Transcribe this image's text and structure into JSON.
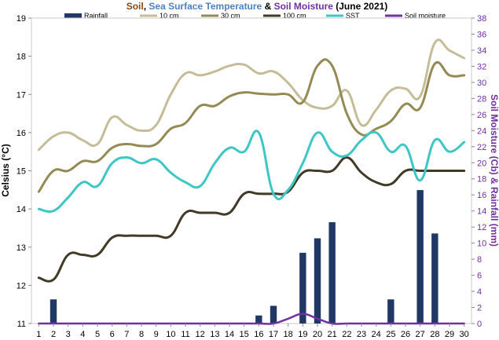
{
  "chart_data": {
    "type": "line",
    "title_parts": [
      {
        "text": "Soil",
        "color": "#8b4513"
      },
      {
        "text": ", ",
        "color": "#000000"
      },
      {
        "text": "Sea Surface Temperature",
        "color": "#4f81bd"
      },
      {
        "text": " & ",
        "color": "#000000"
      },
      {
        "text": "Soil Moisture",
        "color": "#7030a0"
      },
      {
        "text": " (June 2021)",
        "color": "#000000"
      }
    ],
    "ylabel": "Celsius (°C)",
    "y2label": "Soil Moisture (Cb) & Rainfall (mm)",
    "ylim": [
      11,
      19
    ],
    "y2lim": [
      0,
      38
    ],
    "yticks": [
      "11",
      "12",
      "13",
      "14",
      "15",
      "16",
      "17",
      "18",
      "19"
    ],
    "y2ticks": [
      "0",
      "2",
      "4",
      "6",
      "8",
      "10",
      "12",
      "14",
      "16",
      "18",
      "20",
      "22",
      "24",
      "26",
      "28",
      "30",
      "32",
      "34",
      "36",
      "38"
    ],
    "x": [
      1,
      2,
      3,
      4,
      5,
      6,
      7,
      8,
      9,
      10,
      11,
      12,
      13,
      14,
      15,
      16,
      17,
      18,
      19,
      20,
      21,
      22,
      23,
      24,
      25,
      26,
      27,
      28,
      29,
      30
    ],
    "legend": [
      {
        "name": "Rainfall",
        "color": "#1f3864",
        "kind": "bar"
      },
      {
        "name": "10 cm",
        "color": "#c4bd97",
        "kind": "line"
      },
      {
        "name": "30 cm",
        "color": "#948a54",
        "kind": "line"
      },
      {
        "name": "100 cm",
        "color": "#403a26",
        "kind": "line"
      },
      {
        "name": "SST",
        "color": "#3ec6c6",
        "kind": "line"
      },
      {
        "name": "Soil moisture",
        "color": "#7030a0",
        "kind": "line"
      }
    ],
    "series": [
      {
        "name": "10 cm",
        "axis": "left",
        "color": "#c4bd97",
        "values": [
          15.55,
          15.9,
          16.0,
          15.8,
          15.7,
          16.4,
          16.2,
          16.05,
          16.2,
          17.0,
          17.55,
          17.5,
          17.6,
          17.75,
          17.78,
          17.55,
          17.6,
          17.3,
          16.85,
          16.65,
          16.7,
          17.1,
          16.2,
          16.6,
          17.1,
          17.15,
          16.95,
          18.35,
          18.15,
          17.95
        ]
      },
      {
        "name": "30 cm",
        "axis": "left",
        "color": "#948a54",
        "values": [
          14.45,
          15.0,
          15.0,
          15.25,
          15.25,
          15.6,
          15.7,
          15.65,
          15.7,
          16.1,
          16.25,
          16.7,
          16.7,
          16.95,
          17.05,
          17.02,
          17.0,
          17.0,
          16.8,
          17.75,
          17.75,
          16.5,
          15.95,
          16.1,
          16.3,
          16.75,
          16.65,
          17.8,
          17.5,
          17.5
        ]
      },
      {
        "name": "100 cm",
        "axis": "left",
        "color": "#403a26",
        "values": [
          12.2,
          12.15,
          12.8,
          12.8,
          12.8,
          13.25,
          13.3,
          13.3,
          13.3,
          13.3,
          13.9,
          13.9,
          13.9,
          13.9,
          14.4,
          14.4,
          14.4,
          14.45,
          14.95,
          15.0,
          15.0,
          15.35,
          14.95,
          14.7,
          14.65,
          15.0,
          15.0,
          15.0,
          15.0,
          15.0
        ]
      },
      {
        "name": "SST",
        "axis": "left",
        "color": "#3ec6c6",
        "values": [
          14.0,
          13.95,
          14.3,
          14.7,
          14.6,
          15.2,
          15.35,
          15.2,
          15.3,
          14.95,
          14.7,
          14.6,
          15.2,
          15.6,
          15.5,
          16.0,
          14.4,
          14.5,
          15.2,
          16.0,
          15.5,
          15.4,
          15.8,
          16.0,
          15.5,
          15.65,
          14.75,
          15.8,
          15.5,
          15.75
        ]
      },
      {
        "name": "Soil moisture",
        "axis": "right",
        "color": "#7030a0",
        "values": [
          0,
          0,
          0,
          0,
          0,
          0,
          0,
          0,
          0,
          0,
          0,
          0,
          0,
          0,
          0,
          0,
          0,
          0.6,
          1.2,
          0.6,
          0,
          0,
          0,
          0,
          0,
          0,
          0,
          0,
          0,
          0
        ]
      },
      {
        "name": "Rainfall",
        "axis": "right",
        "type": "bar",
        "color": "#1f3864",
        "values": [
          0,
          3,
          0,
          0,
          0,
          0,
          0,
          0,
          0,
          0,
          0,
          0,
          0,
          0,
          0,
          1,
          2.2,
          0,
          8.8,
          10.6,
          12.6,
          0,
          0,
          0,
          3,
          0,
          16.6,
          11.2,
          0,
          0
        ]
      }
    ]
  }
}
